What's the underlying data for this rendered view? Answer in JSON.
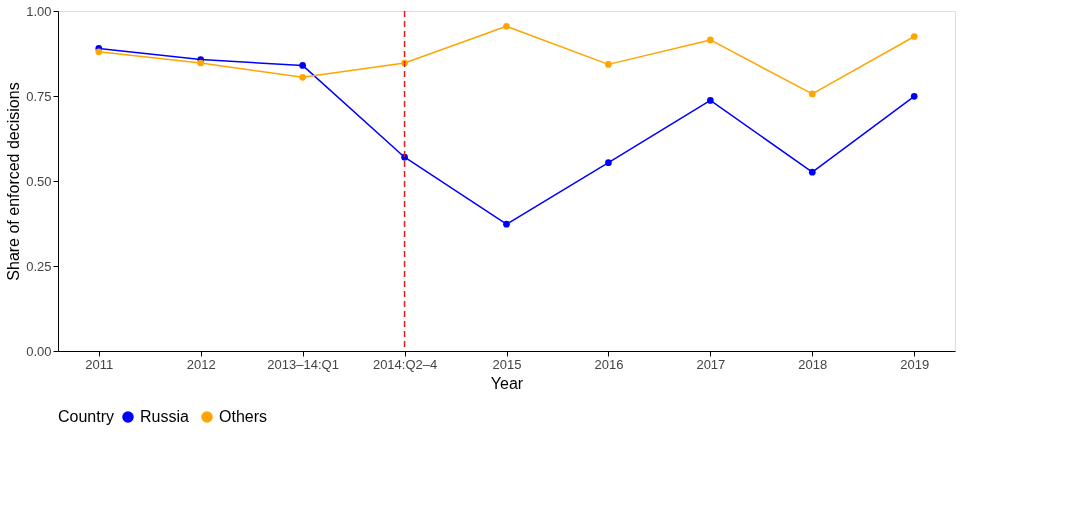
{
  "chart_data": {
    "type": "line",
    "xlabel": "Year",
    "ylabel": "Share of enforced decisions",
    "legend_title": "Country",
    "legend": "bottom",
    "grid": false,
    "marker": "circle",
    "line_style": "solid",
    "categories": [
      "2011",
      "2012",
      "2013–14:Q1",
      "2014:Q2–4",
      "2015",
      "2016",
      "2017",
      "2018",
      "2019"
    ],
    "ylim": [
      0,
      1.0
    ],
    "yticks": [
      {
        "value": 0,
        "label": "0.00"
      },
      {
        "value": 0.25,
        "label": "0.25"
      },
      {
        "value": 0.5,
        "label": "0.50"
      },
      {
        "value": 0.75,
        "label": "0.75"
      },
      {
        "value": 1.0,
        "label": "1.00"
      }
    ],
    "series": [
      {
        "name": "Russia",
        "color": "#0000ff",
        "values": [
          0.89,
          0.857,
          0.84,
          0.57,
          0.373,
          0.554,
          0.737,
          0.526,
          0.749
        ]
      },
      {
        "name": "Others",
        "color": "#ffa500",
        "values": [
          0.88,
          0.847,
          0.805,
          0.847,
          0.955,
          0.843,
          0.915,
          0.756,
          0.925
        ]
      }
    ],
    "ref_lines": [
      {
        "axis": "x",
        "value": "2014:Q2–4",
        "color": "#e41a1c",
        "line_style": "dashed"
      }
    ]
  }
}
